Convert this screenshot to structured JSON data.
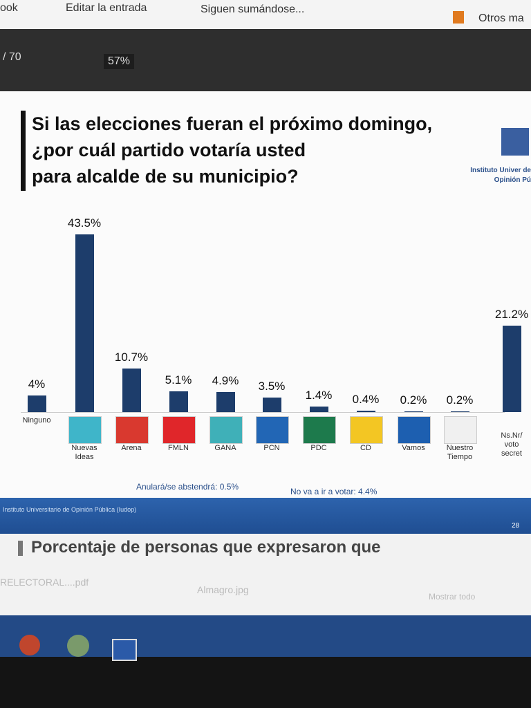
{
  "browser": {
    "tabs": [
      "ook",
      "Editar la entrada",
      "Siguen sumándose...",
      "Otros ma"
    ],
    "page_count": "/ 70",
    "zoom": "57%"
  },
  "chart_data": {
    "type": "bar",
    "title": "Si las elecciones fueran el próximo domingo,\n¿por cuál partido votaría usted\npara alcalde de su municipio?",
    "source": "Instituto Univer de Opinión Pú",
    "categories": [
      "Ninguno",
      "Nuevas Ideas",
      "Arena",
      "FMLN",
      "GANA",
      "PCN",
      "PDC",
      "CD",
      "Vamos",
      "Nuestro Tiempo",
      "Ns.Nr/ voto secret"
    ],
    "values": [
      4,
      43.5,
      10.7,
      5.1,
      4.9,
      3.5,
      1.4,
      0.4,
      0.2,
      0.2,
      21.2
    ],
    "value_labels": [
      "4%",
      "43.5%",
      "10.7%",
      "5.1%",
      "4.9%",
      "3.5%",
      "1.4%",
      "0.4%",
      "0.2%",
      "0.2%",
      "21.2%"
    ],
    "color": "#1d3d6b",
    "notes": [
      "Anulará/se abstendrá: 0.5%",
      "No va a ir a votar: 4.4%"
    ],
    "footer": "Instituto Universitario de Opinión Pública (Iudop)",
    "page_number": "28"
  },
  "next_page": {
    "heading": "Porcentaje de personas que expresaron que"
  },
  "downloads": {
    "items": [
      "RELECTORAL....pdf",
      "Almagro.jpg"
    ],
    "show_all": "Mostrar todo"
  }
}
